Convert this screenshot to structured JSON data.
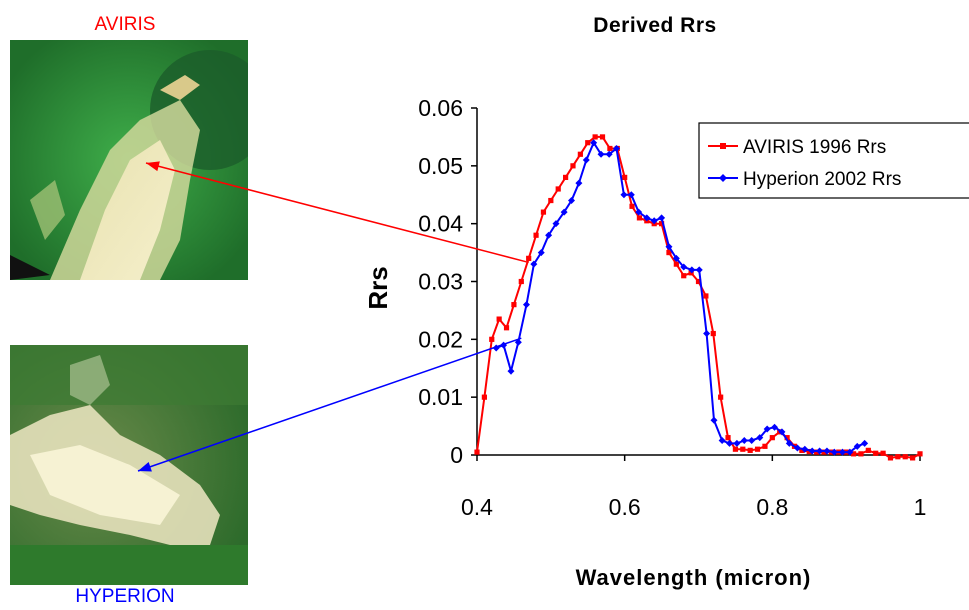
{
  "images": {
    "top_label": "AVIRIS",
    "top_label_color": "#ff0000",
    "bottom_label": "HYPERION",
    "bottom_label_color": "#0000ff"
  },
  "chart_data": {
    "type": "line",
    "title": "Derived Rrs",
    "xlabel": "Wavelength (micron)",
    "ylabel": "Rrs",
    "xlim": [
      0.4,
      1.0
    ],
    "ylim": [
      0,
      0.06
    ],
    "xticks": [
      "0.4",
      "0.6",
      "0.8",
      "1"
    ],
    "yticks": [
      "0",
      "0.01",
      "0.02",
      "0.03",
      "0.04",
      "0.05",
      "0.06"
    ],
    "grid": false,
    "legend": "top-right",
    "series": [
      {
        "name": "AVIRIS 1996 Rrs",
        "color": "#ff0000",
        "marker": "square",
        "x": [
          0.4,
          0.41,
          0.42,
          0.43,
          0.44,
          0.45,
          0.46,
          0.47,
          0.48,
          0.49,
          0.5,
          0.51,
          0.52,
          0.53,
          0.54,
          0.55,
          0.56,
          0.57,
          0.58,
          0.59,
          0.6,
          0.61,
          0.62,
          0.63,
          0.64,
          0.65,
          0.66,
          0.67,
          0.68,
          0.69,
          0.7,
          0.71,
          0.72,
          0.73,
          0.74,
          0.75,
          0.76,
          0.77,
          0.78,
          0.79,
          0.8,
          0.81,
          0.82,
          0.83,
          0.84,
          0.85,
          0.86,
          0.87,
          0.88,
          0.89,
          0.9,
          0.91,
          0.92,
          0.93,
          0.94,
          0.95,
          0.96,
          0.97,
          0.98,
          0.99,
          1.0
        ],
        "y": [
          0.0005,
          0.01,
          0.02,
          0.0235,
          0.022,
          0.026,
          0.03,
          0.034,
          0.038,
          0.042,
          0.044,
          0.046,
          0.048,
          0.05,
          0.052,
          0.054,
          0.055,
          0.055,
          0.053,
          0.053,
          0.048,
          0.043,
          0.041,
          0.0405,
          0.04,
          0.04,
          0.035,
          0.033,
          0.031,
          0.0315,
          0.03,
          0.0275,
          0.021,
          0.01,
          0.003,
          0.001,
          0.001,
          0.0008,
          0.001,
          0.0015,
          0.003,
          0.004,
          0.003,
          0.0015,
          0.0008,
          0.0006,
          0.0005,
          0.0005,
          0.0005,
          0.0005,
          0.0005,
          0.0002,
          0.0002,
          0.0008,
          0.0003,
          0.0003,
          -0.0005,
          -0.0003,
          -0.0003,
          -0.0005,
          0.0002
        ]
      },
      {
        "name": "Hyperion 2002 Rrs",
        "color": "#0000ff",
        "marker": "diamond",
        "x": [
          0.426,
          0.436,
          0.446,
          0.456,
          0.467,
          0.477,
          0.487,
          0.497,
          0.507,
          0.518,
          0.528,
          0.538,
          0.548,
          0.558,
          0.568,
          0.579,
          0.589,
          0.599,
          0.609,
          0.619,
          0.63,
          0.64,
          0.65,
          0.66,
          0.67,
          0.68,
          0.691,
          0.701,
          0.711,
          0.721,
          0.732,
          0.742,
          0.752,
          0.762,
          0.772,
          0.783,
          0.793,
          0.803,
          0.813,
          0.823,
          0.834,
          0.844,
          0.854,
          0.864,
          0.874,
          0.884,
          0.895,
          0.905,
          0.915,
          0.925
        ],
        "y": [
          0.0185,
          0.019,
          0.0145,
          0.0195,
          0.026,
          0.033,
          0.035,
          0.038,
          0.04,
          0.042,
          0.044,
          0.047,
          0.051,
          0.054,
          0.052,
          0.052,
          0.053,
          0.045,
          0.045,
          0.042,
          0.041,
          0.0405,
          0.041,
          0.036,
          0.034,
          0.0325,
          0.032,
          0.032,
          0.021,
          0.006,
          0.0025,
          0.002,
          0.002,
          0.0025,
          0.0025,
          0.003,
          0.0045,
          0.0048,
          0.004,
          0.002,
          0.0012,
          0.001,
          0.0007,
          0.0007,
          0.0007,
          0.0005,
          0.0005,
          0.0005,
          0.0015,
          0.002
        ]
      }
    ],
    "annotations": [
      {
        "type": "arrow",
        "color": "#ff0000",
        "from": [
          0.47,
          0.0333
        ],
        "to_image": "top"
      },
      {
        "type": "arrow",
        "color": "#0000ff",
        "from": [
          0.46,
          0.0202
        ],
        "to_image": "bottom"
      }
    ]
  }
}
